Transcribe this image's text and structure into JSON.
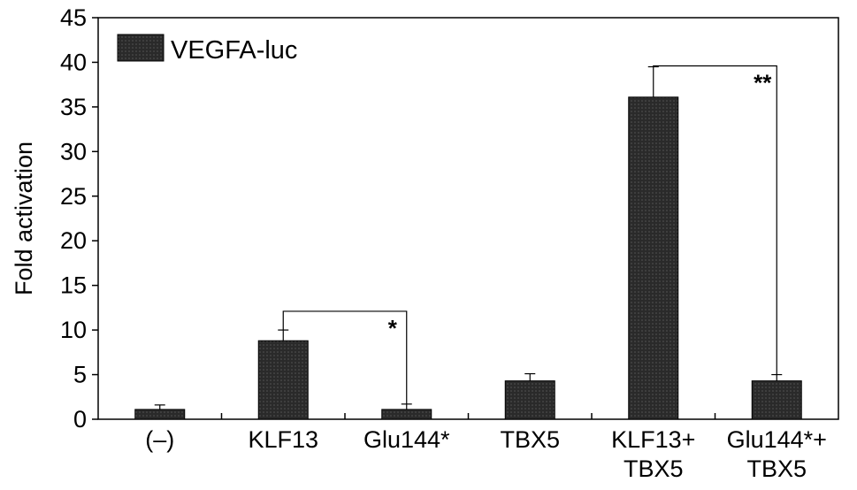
{
  "chart_data": {
    "type": "bar",
    "ylabel": "Fold activation",
    "ylim": [
      0,
      45
    ],
    "yticks": [
      0,
      5,
      10,
      15,
      20,
      25,
      30,
      35,
      40,
      45
    ],
    "categories": [
      [
        "(–)"
      ],
      [
        "KLF13"
      ],
      [
        "Glu144*"
      ],
      [
        "TBX5"
      ],
      [
        "KLF13+",
        "TBX5"
      ],
      [
        "Glu144*+",
        "TBX5"
      ]
    ],
    "series": [
      {
        "name": "VEGFA-luc",
        "values": [
          1.1,
          8.8,
          1.1,
          4.3,
          36.1,
          4.3
        ],
        "errors": [
          0.5,
          1.2,
          0.6,
          0.8,
          3.4,
          0.7
        ],
        "color": "#1a1a1a"
      }
    ],
    "significance": [
      {
        "from": 1,
        "to": 2,
        "level": 12.1,
        "label": "*"
      },
      {
        "from": 4,
        "to": 5,
        "level": 39.6,
        "label": "**"
      }
    ],
    "legend_position": "top-left",
    "grid": false
  }
}
